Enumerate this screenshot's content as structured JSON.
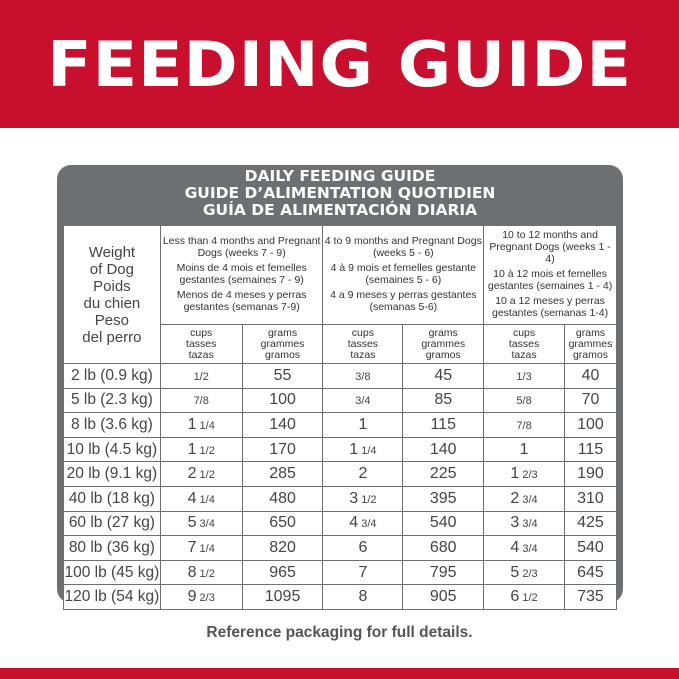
{
  "banner": {
    "title": "FEEDING GUIDE",
    "color": "#c8102e"
  },
  "box": {
    "titles": [
      "DAILY FEEDING GUIDE",
      "GUIDE D’ALIMENTATION QUOTIDIEN",
      "GUÍA DE ALIMENTACIÓN DIARIA"
    ]
  },
  "table": {
    "weight_header": [
      "Weight",
      "of Dog",
      "Poids",
      "du chien",
      "Peso",
      "del perro"
    ],
    "groups": [
      {
        "en": "Less than 4 months and Pregnant Dogs (weeks 7 - 9)",
        "fr": "Moins de 4 mois et femelles gestantes (semaines 7 - 9)",
        "es": "Menos de 4 meses y perras gestantes (semanas 7-9)"
      },
      {
        "en": "4 to 9 months and Pregnant Dogs (weeks 5 - 6)",
        "fr": "4 à 9 mois et femelles gestante (semaines 5 - 6)",
        "es": "4 a 9 meses y perras gestantes (semanas 5-6)"
      },
      {
        "en": "10 to 12 months and Pregnant Dogs (weeks 1 - 4)",
        "fr": "10 à 12 mois et femelles gestantes (semaines 1 - 4)",
        "es": "10 a 12 meses y perras gestantes (semanas 1-4)"
      }
    ],
    "unit_cups": "cups\ntasses\ntazas",
    "unit_grams": "grams\ngrammes\ngramos",
    "rows": [
      [
        "2 lb (0.9 kg)",
        "1/2",
        "55",
        "3/8",
        "45",
        "1/3",
        "40"
      ],
      [
        "5 lb (2.3 kg)",
        "7/8",
        "100",
        "3/4",
        "85",
        "5/8",
        "70"
      ],
      [
        "8 lb (3.6 kg)",
        "1 1/4",
        "140",
        "1",
        "115",
        "7/8",
        "100"
      ],
      [
        "10 lb (4.5 kg)",
        "1 1/2",
        "170",
        "1 1/4",
        "140",
        "1",
        "115"
      ],
      [
        "20 lb (9.1 kg)",
        "2 1/2",
        "285",
        "2",
        "225",
        "1 2/3",
        "190"
      ],
      [
        "40 lb (18 kg)",
        "4 1/4",
        "480",
        "3 1/2",
        "395",
        "2 3/4",
        "310"
      ],
      [
        "60 lb (27 kg)",
        "5 3/4",
        "650",
        "4 3/4",
        "540",
        "3 3/4",
        "425"
      ],
      [
        "80 lb (36 kg)",
        "7 1/4",
        "820",
        "6",
        "680",
        "4 3/4",
        "540"
      ],
      [
        "100 lb (45 kg)",
        "8 1/2",
        "965",
        "7",
        "795",
        "5 2/3",
        "645"
      ],
      [
        "120 lb (54 kg)",
        "9 2/3",
        "1095",
        "8",
        "905",
        "6 1/2",
        "735"
      ]
    ]
  },
  "footer": {
    "text": "Reference packaging for full details."
  }
}
